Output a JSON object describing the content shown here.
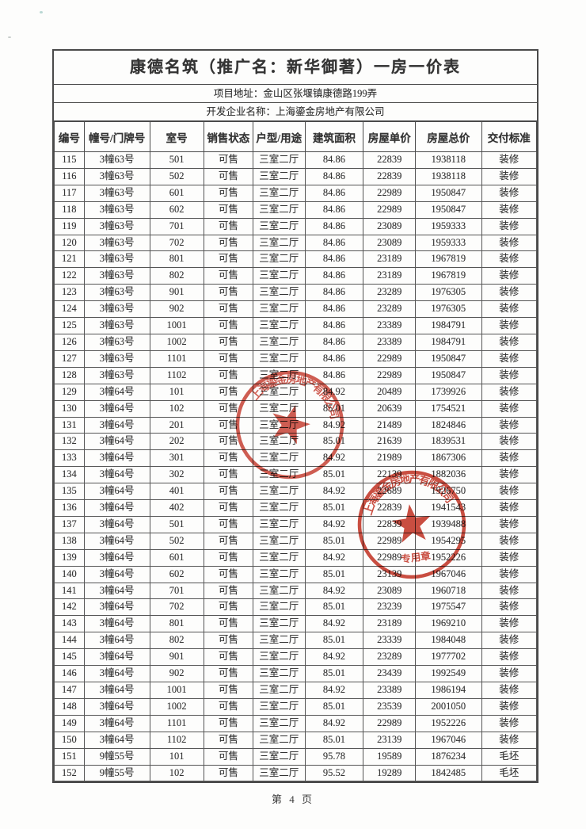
{
  "page": {
    "footer": "第 4 页",
    "background": "#fdfdfc"
  },
  "document": {
    "title": "康德名筑（推广名：新华御著）一房一价表",
    "address_label": "项目地址：",
    "address_value": "金山区张堰镇康德路199弄",
    "developer_label": "开发企业名称：",
    "developer_value": "上海鎏金房地产有限公司"
  },
  "table": {
    "headers": [
      "编号",
      "幢号/门牌号",
      "室号",
      "销售状态",
      "户型/用途",
      "建筑面积",
      "房屋单价",
      "房屋总价",
      "交付标准"
    ],
    "col_widths_pct": [
      6.2,
      13.6,
      11.2,
      10.2,
      10.8,
      12.1,
      10.8,
      13.7,
      11.4
    ],
    "rows": [
      [
        "115",
        "3幢63号",
        "501",
        "可售",
        "三室二厅",
        "84.86",
        "22839",
        "1938118",
        "装修"
      ],
      [
        "116",
        "3幢63号",
        "502",
        "可售",
        "三室二厅",
        "84.86",
        "22839",
        "1938118",
        "装修"
      ],
      [
        "117",
        "3幢63号",
        "601",
        "可售",
        "三室二厅",
        "84.86",
        "22989",
        "1950847",
        "装修"
      ],
      [
        "118",
        "3幢63号",
        "602",
        "可售",
        "三室二厅",
        "84.86",
        "22989",
        "1950847",
        "装修"
      ],
      [
        "119",
        "3幢63号",
        "701",
        "可售",
        "三室二厅",
        "84.86",
        "23089",
        "1959333",
        "装修"
      ],
      [
        "120",
        "3幢63号",
        "702",
        "可售",
        "三室二厅",
        "84.86",
        "23089",
        "1959333",
        "装修"
      ],
      [
        "121",
        "3幢63号",
        "801",
        "可售",
        "三室二厅",
        "84.86",
        "23189",
        "1967819",
        "装修"
      ],
      [
        "122",
        "3幢63号",
        "802",
        "可售",
        "三室二厅",
        "84.86",
        "23189",
        "1967819",
        "装修"
      ],
      [
        "123",
        "3幢63号",
        "901",
        "可售",
        "三室二厅",
        "84.86",
        "23289",
        "1976305",
        "装修"
      ],
      [
        "124",
        "3幢63号",
        "902",
        "可售",
        "三室二厅",
        "84.86",
        "23289",
        "1976305",
        "装修"
      ],
      [
        "125",
        "3幢63号",
        "1001",
        "可售",
        "三室二厅",
        "84.86",
        "23389",
        "1984791",
        "装修"
      ],
      [
        "126",
        "3幢63号",
        "1002",
        "可售",
        "三室二厅",
        "84.86",
        "23389",
        "1984791",
        "装修"
      ],
      [
        "127",
        "3幢63号",
        "1101",
        "可售",
        "三室二厅",
        "84.86",
        "22989",
        "1950847",
        "装修"
      ],
      [
        "128",
        "3幢63号",
        "1102",
        "可售",
        "三室二厅",
        "84.86",
        "22989",
        "1950847",
        "装修"
      ],
      [
        "129",
        "3幢64号",
        "101",
        "可售",
        "三室二厅",
        "84.92",
        "20489",
        "1739926",
        "装修"
      ],
      [
        "130",
        "3幢64号",
        "102",
        "可售",
        "三室二厅",
        "85.01",
        "20639",
        "1754521",
        "装修"
      ],
      [
        "131",
        "3幢64号",
        "201",
        "可售",
        "三室二厅",
        "84.92",
        "21489",
        "1824846",
        "装修"
      ],
      [
        "132",
        "3幢64号",
        "202",
        "可售",
        "三室二厅",
        "85.01",
        "21639",
        "1839531",
        "装修"
      ],
      [
        "133",
        "3幢64号",
        "301",
        "可售",
        "三室二厅",
        "84.92",
        "21989",
        "1867306",
        "装修"
      ],
      [
        "134",
        "3幢64号",
        "302",
        "可售",
        "三室二厅",
        "85.01",
        "22139",
        "1882036",
        "装修"
      ],
      [
        "135",
        "3幢64号",
        "401",
        "可售",
        "三室二厅",
        "84.92",
        "22689",
        "1926750",
        "装修"
      ],
      [
        "136",
        "3幢64号",
        "402",
        "可售",
        "三室二厅",
        "85.01",
        "22839",
        "1941543",
        "装修"
      ],
      [
        "137",
        "3幢64号",
        "501",
        "可售",
        "三室二厅",
        "84.92",
        "22839",
        "1939488",
        "装修"
      ],
      [
        "138",
        "3幢64号",
        "502",
        "可售",
        "三室二厅",
        "85.01",
        "22989",
        "1954295",
        "装修"
      ],
      [
        "139",
        "3幢64号",
        "601",
        "可售",
        "三室二厅",
        "84.92",
        "22989",
        "1952226",
        "装修"
      ],
      [
        "140",
        "3幢64号",
        "602",
        "可售",
        "三室二厅",
        "85.01",
        "23139",
        "1967046",
        "装修"
      ],
      [
        "141",
        "3幢64号",
        "701",
        "可售",
        "三室二厅",
        "84.92",
        "23089",
        "1960718",
        "装修"
      ],
      [
        "142",
        "3幢64号",
        "702",
        "可售",
        "三室二厅",
        "85.01",
        "23239",
        "1975547",
        "装修"
      ],
      [
        "143",
        "3幢64号",
        "801",
        "可售",
        "三室二厅",
        "84.92",
        "23189",
        "1969210",
        "装修"
      ],
      [
        "144",
        "3幢64号",
        "802",
        "可售",
        "三室二厅",
        "85.01",
        "23339",
        "1984048",
        "装修"
      ],
      [
        "145",
        "3幢64号",
        "901",
        "可售",
        "三室二厅",
        "84.92",
        "23289",
        "1977702",
        "装修"
      ],
      [
        "146",
        "3幢64号",
        "902",
        "可售",
        "三室二厅",
        "85.01",
        "23439",
        "1992549",
        "装修"
      ],
      [
        "147",
        "3幢64号",
        "1001",
        "可售",
        "三室二厅",
        "84.92",
        "23389",
        "1986194",
        "装修"
      ],
      [
        "148",
        "3幢64号",
        "1002",
        "可售",
        "三室二厅",
        "85.01",
        "23539",
        "2001050",
        "装修"
      ],
      [
        "149",
        "3幢64号",
        "1101",
        "可售",
        "三室二厅",
        "84.92",
        "22989",
        "1952226",
        "装修"
      ],
      [
        "150",
        "3幢64号",
        "1102",
        "可售",
        "三室二厅",
        "85.01",
        "23139",
        "1967046",
        "装修"
      ],
      [
        "151",
        "9幢55号",
        "101",
        "可售",
        "三室二厅",
        "95.78",
        "19589",
        "1876234",
        "毛坯"
      ],
      [
        "152",
        "9幢55号",
        "102",
        "可售",
        "三室二厅",
        "95.52",
        "19289",
        "1842485",
        "毛坯"
      ]
    ]
  },
  "stamps": [
    {
      "arc_text": "上海鎏金房地产有限公司",
      "bottom_text": "",
      "color": "#c63a2d"
    },
    {
      "arc_text": "上海鎏金房地产有限公司",
      "bottom_text": "专用章",
      "color": "#c63a2d"
    }
  ],
  "colors": {
    "border": "#4a4a4a",
    "text": "#343434",
    "stamp_red": "#c63a2d"
  }
}
